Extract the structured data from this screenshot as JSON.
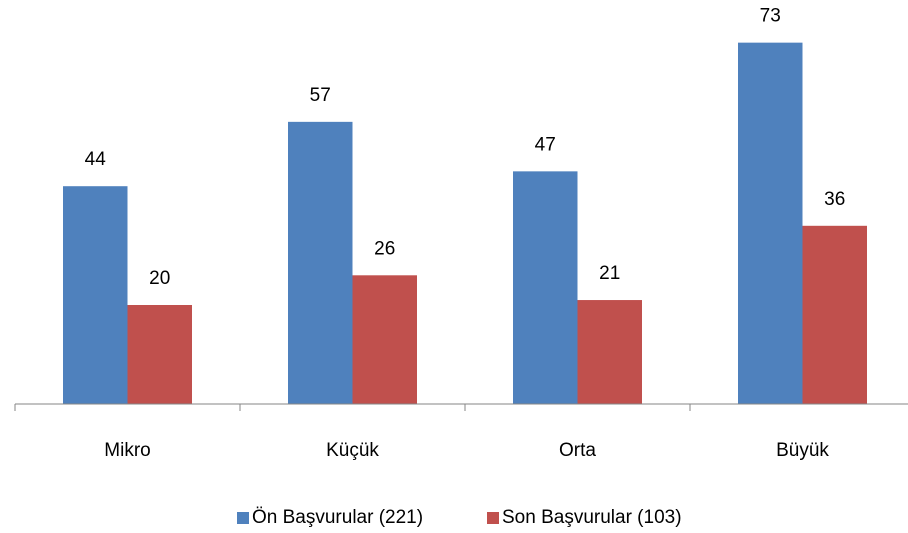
{
  "chart_data": {
    "type": "bar",
    "categories": [
      "Mikro",
      "Küçük",
      "Orta",
      "Büyük"
    ],
    "series": [
      {
        "name": "Ön Başvurular (221)",
        "color": "#4f81bd",
        "values": [
          44,
          57,
          47,
          73
        ]
      },
      {
        "name": "Son Başvurular (103)",
        "color": "#c0504d",
        "values": [
          20,
          26,
          21,
          36
        ]
      }
    ],
    "ylim": [
      0,
      80
    ],
    "legend": "bottom"
  }
}
